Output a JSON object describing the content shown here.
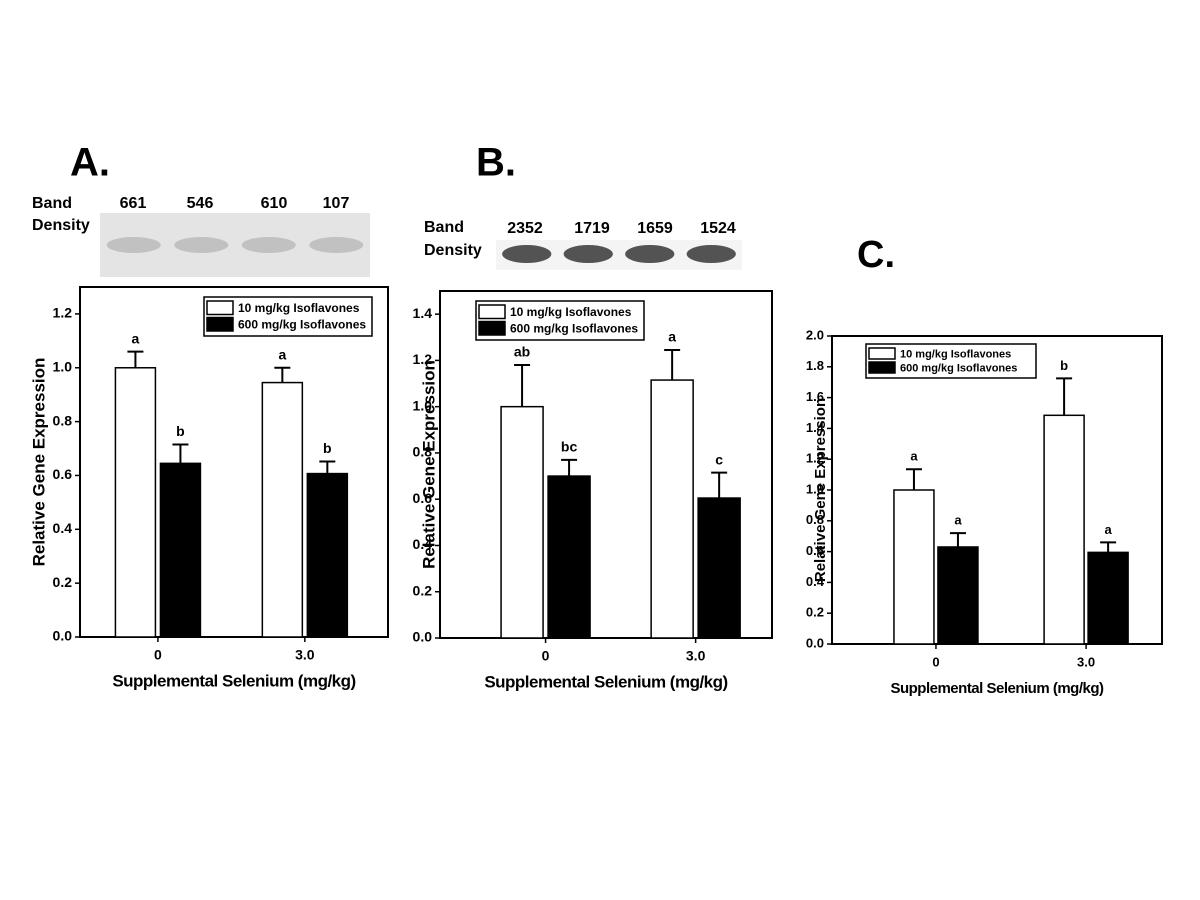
{
  "chart_data": [
    {
      "type": "bar",
      "panel": "A.",
      "band_label": [
        "Band",
        "Density"
      ],
      "band_density": [
        661,
        546,
        610,
        107
      ],
      "categories": [
        "0",
        "3.0"
      ],
      "x_label": "Supplemental Selenium (mg/kg)",
      "y_label": "Relative Gene Expression",
      "ylim": [
        0,
        1.3
      ],
      "yticks": [
        {
          "value": 0,
          "label": "0.0"
        },
        0.2,
        0.4,
        0.6,
        0.8,
        {
          "value": 1,
          "label": "1.0"
        },
        1.2
      ],
      "legend": "upper right",
      "series": [
        {
          "name": "10 mg/kg Isoflavones",
          "color": "#ffffff",
          "values": [
            1.0,
            0.945
          ],
          "errors": [
            0.06,
            0.055
          ],
          "letters": [
            "a",
            "a"
          ]
        },
        {
          "name": "600 mg/kg Isoflavones",
          "color": "#000000",
          "values": [
            0.645,
            0.607
          ],
          "errors": [
            0.07,
            0.045
          ],
          "letters": [
            "b",
            "b"
          ]
        }
      ]
    },
    {
      "type": "bar",
      "panel": "B.",
      "band_label": [
        "Band",
        "Density"
      ],
      "band_density": [
        2352,
        1719,
        1659,
        1524
      ],
      "categories": [
        "0",
        "3.0"
      ],
      "x_label": "Supplemental Selenium (mg/kg)",
      "y_label": "Relative Gene Expression",
      "ylim": [
        0,
        1.5
      ],
      "yticks": [
        {
          "value": 0,
          "label": "0.0"
        },
        0.2,
        0.4,
        0.6,
        0.8,
        {
          "value": 1,
          "label": "1.0"
        },
        1.2,
        1.4
      ],
      "legend": "upper left",
      "series": [
        {
          "name": "10 mg/kg Isoflavones",
          "color": "#ffffff",
          "values": [
            1.0,
            1.115
          ],
          "errors": [
            0.18,
            0.13
          ],
          "letters": [
            "ab",
            "a"
          ]
        },
        {
          "name": "600 mg/kg Isoflavones",
          "color": "#000000",
          "values": [
            0.7,
            0.605
          ],
          "errors": [
            0.07,
            0.11
          ],
          "letters": [
            "bc",
            "c"
          ]
        }
      ]
    },
    {
      "type": "bar",
      "panel": "C.",
      "categories": [
        "0",
        "3.0"
      ],
      "x_label": "Supplemental Selenium (mg/kg)",
      "y_label": "Relative Gene Expression",
      "ylim": [
        0,
        2.0
      ],
      "yticks": [
        {
          "value": 0,
          "label": "0.0"
        },
        0.2,
        0.4,
        0.6,
        0.8,
        {
          "value": 1,
          "label": "1.0"
        },
        1.2,
        1.4,
        1.6,
        1.8,
        {
          "value": 2,
          "label": "2.0"
        }
      ],
      "legend": "upper left",
      "series": [
        {
          "name": "10 mg/kg Isoflavones",
          "color": "#ffffff",
          "values": [
            1.0,
            1.485
          ],
          "errors": [
            0.135,
            0.24
          ],
          "letters": [
            "a",
            "b"
          ]
        },
        {
          "name": "600 mg/kg Isoflavones",
          "color": "#000000",
          "values": [
            0.63,
            0.595
          ],
          "errors": [
            0.09,
            0.065
          ],
          "letters": [
            "a",
            "a"
          ]
        }
      ]
    }
  ]
}
